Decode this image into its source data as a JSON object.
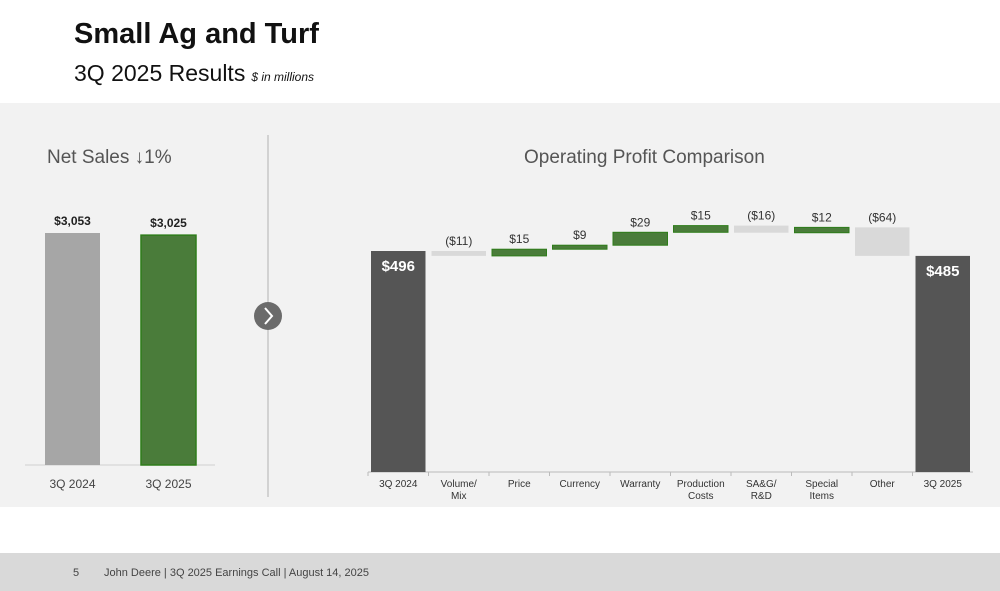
{
  "header": {
    "title": "Small Ag and Turf",
    "subtitle": "3Q 2025 Results",
    "unit_note": "$ in millions"
  },
  "footer": {
    "page": "5",
    "text": "John Deere | 3Q 2025 Earnings Call | August 14, 2025"
  },
  "colors": {
    "green": "#4a7c3a",
    "green_edge": "#2e7d1a",
    "gray_bar": "#a6a6a6",
    "dark_bar": "#555555",
    "negative": "#d9d9d9",
    "panel": "#f2f2f2"
  },
  "chart_data": [
    {
      "type": "bar",
      "title": "Net Sales ↓1%",
      "categories": [
        "3Q 2024",
        "3Q 2025"
      ],
      "values": [
        3053,
        3025
      ],
      "labels": [
        "$3,053",
        "$3,025"
      ],
      "ylim": [
        0,
        3053
      ]
    },
    {
      "type": "waterfall",
      "title": "Operating Profit Comparison",
      "categories": [
        "3Q 2024",
        "Volume/ Mix",
        "Price",
        "Currency",
        "Warranty",
        "Production Costs",
        "SA&G/ R&D",
        "Special Items",
        "Other",
        "3Q 2025"
      ],
      "values": [
        496,
        -11,
        15,
        9,
        29,
        15,
        -16,
        12,
        -64,
        485
      ],
      "labels": [
        "$496",
        "($11)",
        "$15",
        "$9",
        "$29",
        "$15",
        "($16)",
        "$12",
        "($64)",
        "$485"
      ],
      "kinds": [
        "total",
        "delta",
        "delta",
        "delta",
        "delta",
        "delta",
        "delta",
        "delta",
        "delta",
        "total"
      ]
    }
  ]
}
